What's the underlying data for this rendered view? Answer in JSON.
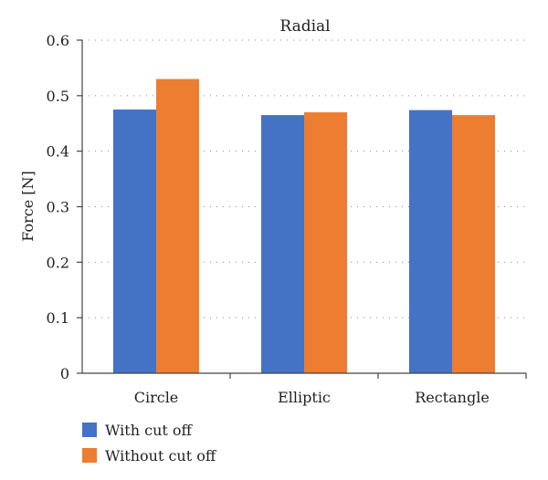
{
  "chart_data": {
    "type": "bar",
    "title": "Radial",
    "xlabel": "",
    "ylabel": "Force [N]",
    "categories": [
      "Circle",
      "Elliptic",
      "Rectangle"
    ],
    "series": [
      {
        "name": "With cut off",
        "values": [
          0.475,
          0.465,
          0.474
        ]
      },
      {
        "name": "Without cut off",
        "values": [
          0.53,
          0.47,
          0.465
        ]
      }
    ],
    "ylim": [
      0,
      0.6
    ],
    "yticks": [
      "0",
      "0.1",
      "0.2",
      "0.3",
      "0.4",
      "0.5",
      "0.6"
    ],
    "grid": true,
    "legend_position": "bottom-left",
    "colors": [
      "#4472c4",
      "#ed7d31"
    ]
  }
}
